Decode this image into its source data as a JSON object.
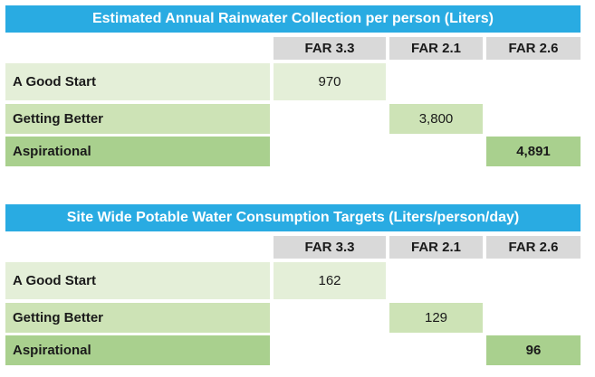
{
  "tables": [
    {
      "title": "Estimated Annual Rainwater Collection per person (Liters)",
      "columns": [
        "FAR 3.3",
        "FAR 2.1",
        "FAR 2.6"
      ],
      "rows": [
        {
          "label": "A Good Start",
          "values": [
            "970",
            "",
            ""
          ]
        },
        {
          "label": "Getting Better",
          "values": [
            "",
            "3,800",
            ""
          ]
        },
        {
          "label": "Aspirational",
          "values": [
            "",
            "",
            "4,891"
          ]
        }
      ]
    },
    {
      "title": "Site Wide Potable Water Consumption Targets (Liters/person/day)",
      "columns": [
        "FAR 3.3",
        "FAR 2.1",
        "FAR 2.6"
      ],
      "rows": [
        {
          "label": "A Good Start",
          "values": [
            "162",
            "",
            ""
          ]
        },
        {
          "label": "Getting Better",
          "values": [
            "",
            "129",
            ""
          ]
        },
        {
          "label": "Aspirational",
          "values": [
            "",
            "",
            "96"
          ]
        }
      ]
    }
  ],
  "colors": {
    "title_bg": "#29abe2",
    "header_bg": "#d9d9d9",
    "good_start": "#e4efd8",
    "getting_better": "#cde3b6",
    "aspirational": "#a9d08e"
  }
}
